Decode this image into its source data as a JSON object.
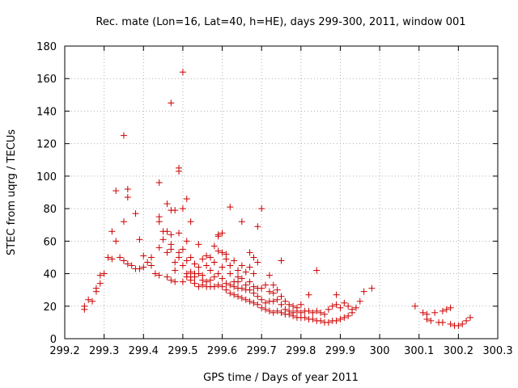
{
  "chart_data": {
    "type": "scatter",
    "title": "Rec. mate (Lon=16, Lat=40, h=HE), days 299-300, 2011, window 001",
    "xlabel": "GPS time / Days of year 2011",
    "ylabel": "STEC from uqrg / TECUs",
    "xlim": [
      299.2,
      300.3
    ],
    "ylim": [
      0,
      180
    ],
    "x_ticks": [
      299.2,
      299.3,
      299.4,
      299.5,
      299.6,
      299.7,
      299.8,
      299.9,
      300,
      300.1,
      300.2,
      300.3
    ],
    "x_tick_labels": [
      "299.2",
      "299.3",
      "299.4",
      "299.5",
      "299.6",
      "299.7",
      "299.8",
      "299.9",
      "300",
      "300.1",
      "300.2",
      "300.3"
    ],
    "y_ticks": [
      0,
      20,
      40,
      60,
      80,
      100,
      120,
      140,
      160,
      180
    ],
    "y_tick_labels": [
      "0",
      "20",
      "40",
      "60",
      "80",
      "100",
      "120",
      "140",
      "160",
      "180"
    ],
    "grid": true,
    "marker": "+",
    "marker_color": "#cc0000",
    "series": [
      {
        "points": [
          [
            299.25,
            18
          ],
          [
            299.25,
            20
          ],
          [
            299.26,
            24
          ],
          [
            299.27,
            23
          ],
          [
            299.28,
            29
          ],
          [
            299.28,
            31
          ],
          [
            299.29,
            34
          ],
          [
            299.29,
            39
          ],
          [
            299.3,
            40
          ],
          [
            299.31,
            50
          ],
          [
            299.32,
            49
          ],
          [
            299.32,
            66
          ],
          [
            299.33,
            60
          ],
          [
            299.33,
            91
          ],
          [
            299.34,
            50
          ],
          [
            299.35,
            48
          ],
          [
            299.35,
            72
          ],
          [
            299.35,
            125
          ],
          [
            299.36,
            46
          ],
          [
            299.36,
            87
          ],
          [
            299.36,
            92
          ],
          [
            299.37,
            45
          ],
          [
            299.38,
            43
          ],
          [
            299.38,
            77
          ],
          [
            299.39,
            43
          ],
          [
            299.39,
            61
          ],
          [
            299.4,
            44
          ],
          [
            299.4,
            51
          ],
          [
            299.41,
            47
          ],
          [
            299.42,
            45
          ],
          [
            299.42,
            50
          ],
          [
            299.43,
            40
          ],
          [
            299.44,
            39
          ],
          [
            299.44,
            56
          ],
          [
            299.44,
            72
          ],
          [
            299.44,
            75
          ],
          [
            299.44,
            96
          ],
          [
            299.45,
            61
          ],
          [
            299.45,
            66
          ],
          [
            299.46,
            38
          ],
          [
            299.46,
            53
          ],
          [
            299.46,
            66
          ],
          [
            299.46,
            83
          ],
          [
            299.47,
            36
          ],
          [
            299.47,
            55
          ],
          [
            299.47,
            58
          ],
          [
            299.47,
            64
          ],
          [
            299.47,
            79
          ],
          [
            299.47,
            145
          ],
          [
            299.48,
            35
          ],
          [
            299.48,
            42
          ],
          [
            299.48,
            47
          ],
          [
            299.48,
            79
          ],
          [
            299.49,
            50
          ],
          [
            299.49,
            53
          ],
          [
            299.49,
            65
          ],
          [
            299.49,
            103
          ],
          [
            299.49,
            105
          ],
          [
            299.5,
            35
          ],
          [
            299.5,
            45
          ],
          [
            299.5,
            55
          ],
          [
            299.5,
            80
          ],
          [
            299.5,
            164
          ],
          [
            299.51,
            38
          ],
          [
            299.51,
            40
          ],
          [
            299.51,
            48
          ],
          [
            299.51,
            60
          ],
          [
            299.51,
            86
          ],
          [
            299.52,
            36
          ],
          [
            299.52,
            38
          ],
          [
            299.52,
            41
          ],
          [
            299.52,
            50
          ],
          [
            299.52,
            72
          ],
          [
            299.53,
            34
          ],
          [
            299.53,
            38
          ],
          [
            299.53,
            40
          ],
          [
            299.53,
            46
          ],
          [
            299.54,
            32
          ],
          [
            299.54,
            40
          ],
          [
            299.54,
            44
          ],
          [
            299.54,
            58
          ],
          [
            299.55,
            33
          ],
          [
            299.55,
            36
          ],
          [
            299.55,
            39
          ],
          [
            299.55,
            49
          ],
          [
            299.56,
            32
          ],
          [
            299.56,
            35
          ],
          [
            299.56,
            45
          ],
          [
            299.56,
            51
          ],
          [
            299.57,
            32
          ],
          [
            299.57,
            36
          ],
          [
            299.57,
            42
          ],
          [
            299.57,
            50
          ],
          [
            299.58,
            32
          ],
          [
            299.58,
            38
          ],
          [
            299.58,
            47
          ],
          [
            299.58,
            57
          ],
          [
            299.59,
            33
          ],
          [
            299.59,
            40
          ],
          [
            299.59,
            54
          ],
          [
            299.59,
            63
          ],
          [
            299.59,
            64
          ],
          [
            299.6,
            32
          ],
          [
            299.6,
            37
          ],
          [
            299.6,
            44
          ],
          [
            299.6,
            53
          ],
          [
            299.6,
            65
          ],
          [
            299.61,
            30
          ],
          [
            299.61,
            34
          ],
          [
            299.61,
            49
          ],
          [
            299.61,
            52
          ],
          [
            299.62,
            28
          ],
          [
            299.62,
            33
          ],
          [
            299.62,
            40
          ],
          [
            299.62,
            45
          ],
          [
            299.62,
            81
          ],
          [
            299.63,
            27
          ],
          [
            299.63,
            32
          ],
          [
            299.63,
            35
          ],
          [
            299.63,
            48
          ],
          [
            299.64,
            26
          ],
          [
            299.64,
            31
          ],
          [
            299.64,
            35
          ],
          [
            299.64,
            38
          ],
          [
            299.64,
            42
          ],
          [
            299.65,
            25
          ],
          [
            299.65,
            31
          ],
          [
            299.65,
            37
          ],
          [
            299.65,
            45
          ],
          [
            299.65,
            72
          ],
          [
            299.66,
            24
          ],
          [
            299.66,
            30
          ],
          [
            299.66,
            33
          ],
          [
            299.66,
            41
          ],
          [
            299.67,
            23
          ],
          [
            299.67,
            30
          ],
          [
            299.67,
            35
          ],
          [
            299.67,
            44
          ],
          [
            299.67,
            53
          ],
          [
            299.68,
            22
          ],
          [
            299.68,
            28
          ],
          [
            299.68,
            32
          ],
          [
            299.68,
            40
          ],
          [
            299.68,
            50
          ],
          [
            299.69,
            21
          ],
          [
            299.69,
            26
          ],
          [
            299.69,
            31
          ],
          [
            299.69,
            47
          ],
          [
            299.69,
            69
          ],
          [
            299.7,
            19
          ],
          [
            299.7,
            24
          ],
          [
            299.7,
            31
          ],
          [
            299.7,
            80
          ],
          [
            299.71,
            18
          ],
          [
            299.71,
            22
          ],
          [
            299.71,
            33
          ],
          [
            299.72,
            17
          ],
          [
            299.72,
            23
          ],
          [
            299.72,
            29
          ],
          [
            299.72,
            39
          ],
          [
            299.73,
            16
          ],
          [
            299.73,
            23
          ],
          [
            299.73,
            28
          ],
          [
            299.73,
            33
          ],
          [
            299.74,
            17
          ],
          [
            299.74,
            24
          ],
          [
            299.74,
            30
          ],
          [
            299.75,
            16
          ],
          [
            299.75,
            21
          ],
          [
            299.75,
            26
          ],
          [
            299.75,
            48
          ],
          [
            299.76,
            15
          ],
          [
            299.76,
            18
          ],
          [
            299.76,
            23
          ],
          [
            299.77,
            15
          ],
          [
            299.77,
            17
          ],
          [
            299.77,
            21
          ],
          [
            299.78,
            14
          ],
          [
            299.78,
            16
          ],
          [
            299.78,
            20
          ],
          [
            299.79,
            13
          ],
          [
            299.79,
            17
          ],
          [
            299.79,
            19
          ],
          [
            299.8,
            13
          ],
          [
            299.8,
            16
          ],
          [
            299.8,
            21
          ],
          [
            299.81,
            13
          ],
          [
            299.81,
            17
          ],
          [
            299.82,
            12
          ],
          [
            299.82,
            17
          ],
          [
            299.82,
            27
          ],
          [
            299.83,
            12
          ],
          [
            299.83,
            16
          ],
          [
            299.84,
            11
          ],
          [
            299.84,
            17
          ],
          [
            299.84,
            42
          ],
          [
            299.85,
            11
          ],
          [
            299.85,
            16
          ],
          [
            299.86,
            10
          ],
          [
            299.86,
            15
          ],
          [
            299.87,
            10
          ],
          [
            299.87,
            18
          ],
          [
            299.88,
            11
          ],
          [
            299.88,
            20
          ],
          [
            299.89,
            11
          ],
          [
            299.89,
            21
          ],
          [
            299.89,
            27
          ],
          [
            299.9,
            12
          ],
          [
            299.9,
            19
          ],
          [
            299.91,
            13
          ],
          [
            299.91,
            22
          ],
          [
            299.92,
            14
          ],
          [
            299.92,
            20
          ],
          [
            299.93,
            16
          ],
          [
            299.93,
            18
          ],
          [
            299.94,
            19
          ],
          [
            299.95,
            23
          ],
          [
            299.96,
            29
          ],
          [
            299.98,
            31
          ],
          [
            300.09,
            20
          ],
          [
            300.11,
            16
          ],
          [
            300.12,
            15
          ],
          [
            300.12,
            12
          ],
          [
            300.13,
            11
          ],
          [
            300.14,
            16
          ],
          [
            300.15,
            10
          ],
          [
            300.16,
            17
          ],
          [
            300.16,
            10
          ],
          [
            300.17,
            18
          ],
          [
            300.18,
            9
          ],
          [
            300.18,
            19
          ],
          [
            300.19,
            8
          ],
          [
            300.2,
            8
          ],
          [
            300.21,
            9
          ],
          [
            300.22,
            11
          ],
          [
            300.23,
            13
          ]
        ]
      }
    ]
  }
}
